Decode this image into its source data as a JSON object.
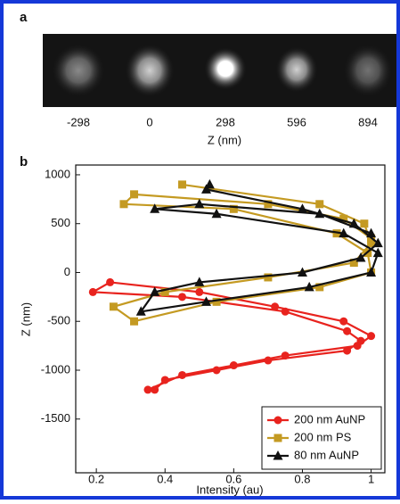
{
  "panel_a": {
    "label": "a",
    "z_labels": [
      "-298",
      "0",
      "298",
      "596",
      "894"
    ],
    "axis_label": "Z (nm)"
  },
  "chart_data": {
    "type": "line",
    "panel_label": "b",
    "xlabel": "Intensity (au)",
    "ylabel": "Z (nm)",
    "xlim": [
      0.14,
      1.04
    ],
    "ylim": [
      -2050,
      1100
    ],
    "xticks": [
      0.2,
      0.4,
      0.6,
      0.8,
      1
    ],
    "yticks": [
      1000,
      500,
      0,
      -500,
      -1000,
      -1500
    ],
    "legend": "lower right",
    "series": [
      {
        "name": "200 nm AuNP",
        "color": "#e8231e",
        "marker": "circle",
        "x": [
          0.37,
          0.4,
          0.55,
          0.7,
          0.93,
          0.97,
          0.93,
          0.75,
          0.45,
          0.19,
          0.24,
          0.5,
          0.72,
          0.92,
          1.0,
          0.96,
          0.75,
          0.6,
          0.45,
          0.35
        ],
        "values": [
          -1200,
          -1100,
          -1000,
          -900,
          -800,
          -700,
          -600,
          -400,
          -250,
          -200,
          -100,
          -200,
          -350,
          -500,
          -650,
          -750,
          -850,
          -950,
          -1050,
          -1200
        ]
      },
      {
        "name": "200 nm PS",
        "color": "#c49a22",
        "marker": "square",
        "x": [
          0.45,
          0.85,
          0.98,
          1.0,
          0.95,
          0.7,
          0.4,
          0.25,
          0.31,
          0.55,
          0.85,
          1.0,
          0.99,
          0.9,
          0.6,
          0.28,
          0.31,
          0.7,
          0.92,
          1.0
        ],
        "values": [
          900,
          700,
          500,
          300,
          100,
          -50,
          -200,
          -350,
          -500,
          -300,
          -150,
          0,
          200,
          400,
          650,
          700,
          800,
          700,
          550,
          350
        ]
      },
      {
        "name": "80 nm AuNP",
        "color": "#111111",
        "marker": "triangle",
        "x": [
          0.53,
          0.52,
          0.8,
          0.95,
          1.02,
          0.97,
          0.8,
          0.5,
          0.37,
          0.33,
          0.52,
          0.82,
          1.0,
          1.02,
          0.92,
          0.55,
          0.37,
          0.5,
          0.85,
          1.0
        ],
        "values": [
          900,
          850,
          650,
          500,
          300,
          150,
          0,
          -100,
          -200,
          -400,
          -300,
          -150,
          0,
          200,
          400,
          600,
          650,
          700,
          600,
          400
        ]
      }
    ]
  }
}
